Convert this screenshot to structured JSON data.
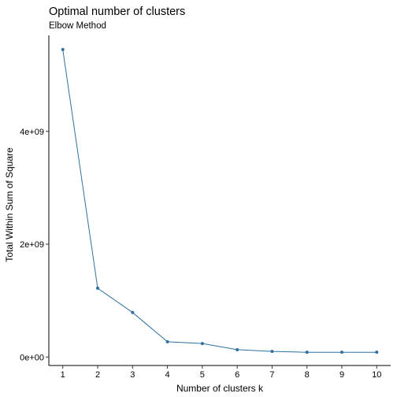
{
  "chart_data": {
    "type": "line",
    "title": "Optimal number of clusters",
    "subtitle": "Elbow Method",
    "xlabel": "Number of clusters k",
    "ylabel": "Total Within Sum of Square",
    "x": [
      1,
      2,
      3,
      4,
      5,
      6,
      7,
      8,
      9,
      10
    ],
    "x_tick_labels": [
      "1",
      "2",
      "3",
      "4",
      "5",
      "6",
      "7",
      "8",
      "9",
      "10"
    ],
    "y_ticks": [
      0,
      2000000000,
      4000000000
    ],
    "y_tick_labels": [
      "0e+00",
      "2e+09",
      "4e+09"
    ],
    "series": [
      {
        "values": [
          5450000000,
          1220000000,
          790000000,
          270000000,
          240000000,
          130000000,
          100000000,
          85000000,
          85000000,
          85000000
        ],
        "color": "#2e6f9e"
      }
    ],
    "xlim": [
      0.6,
      10.4
    ],
    "ylim": [
      -150000000,
      5700000000
    ],
    "grid": false,
    "legend": "none"
  }
}
